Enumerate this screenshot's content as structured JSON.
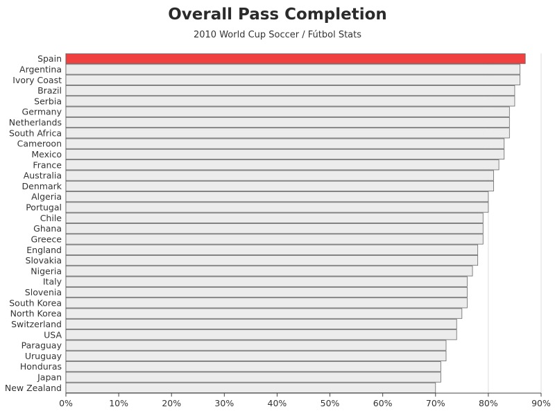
{
  "chart_data": {
    "type": "bar",
    "orientation": "horizontal",
    "title": "Overall Pass Completion",
    "subtitle": "2010 World Cup Soccer / Fútbol Stats",
    "xlim": [
      0,
      90
    ],
    "x_tick_labels": [
      "0%",
      "10%",
      "20%",
      "30%",
      "40%",
      "50%",
      "60%",
      "70%",
      "80%",
      "90%"
    ],
    "grid": "vertical lines at 80% and 90%",
    "categories": [
      "Spain",
      "Argentina",
      "Ivory Coast",
      "Brazil",
      "Serbia",
      "Germany",
      "Netherlands",
      "South Africa",
      "Cameroon",
      "Mexico",
      "France",
      "Australia",
      "Denmark",
      "Algeria",
      "Portugal",
      "Chile",
      "Ghana",
      "Greece",
      "England",
      "Slovakia",
      "Nigeria",
      "Italy",
      "Slovenia",
      "South Korea",
      "North Korea",
      "Switzerland",
      "USA",
      "Paraguay",
      "Uruguay",
      "Honduras",
      "Japan",
      "New Zealand"
    ],
    "values": [
      87,
      86,
      86,
      85,
      85,
      84,
      84,
      84,
      83,
      83,
      82,
      81,
      81,
      80,
      80,
      79,
      79,
      79,
      78,
      78,
      77,
      76,
      76,
      76,
      75,
      74,
      74,
      72,
      72,
      71,
      71,
      70
    ],
    "highlight": "Spain",
    "colors": {
      "highlight": "#f04040",
      "bar": "#ececec",
      "bar_edge": "#666666",
      "axis": "#444444",
      "grid": "#dddddd"
    }
  }
}
